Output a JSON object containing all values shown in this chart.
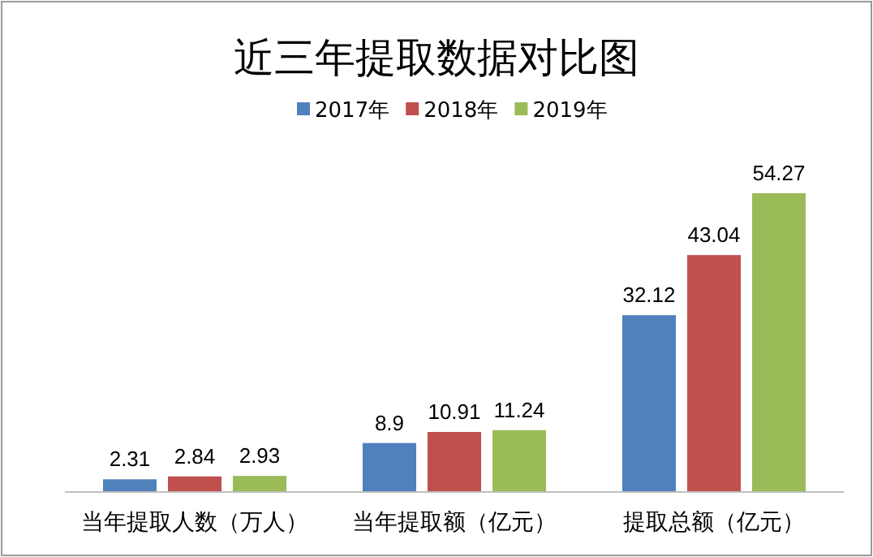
{
  "chart_data": {
    "type": "bar",
    "title": "近三年提取数据对比图",
    "categories": [
      "当年提取人数（万人）",
      "当年提取额（亿元）",
      "提取总额（亿元）"
    ],
    "series": [
      {
        "name": "2017年",
        "color": "#4f81bd",
        "values": [
          2.31,
          8.9,
          32.12
        ]
      },
      {
        "name": "2018年",
        "color": "#c0504d",
        "values": [
          2.84,
          10.91,
          43.04
        ]
      },
      {
        "name": "2019年",
        "color": "#9bbb59",
        "values": [
          2.93,
          11.24,
          54.27
        ]
      }
    ],
    "data_labels": true,
    "legend": "top"
  }
}
